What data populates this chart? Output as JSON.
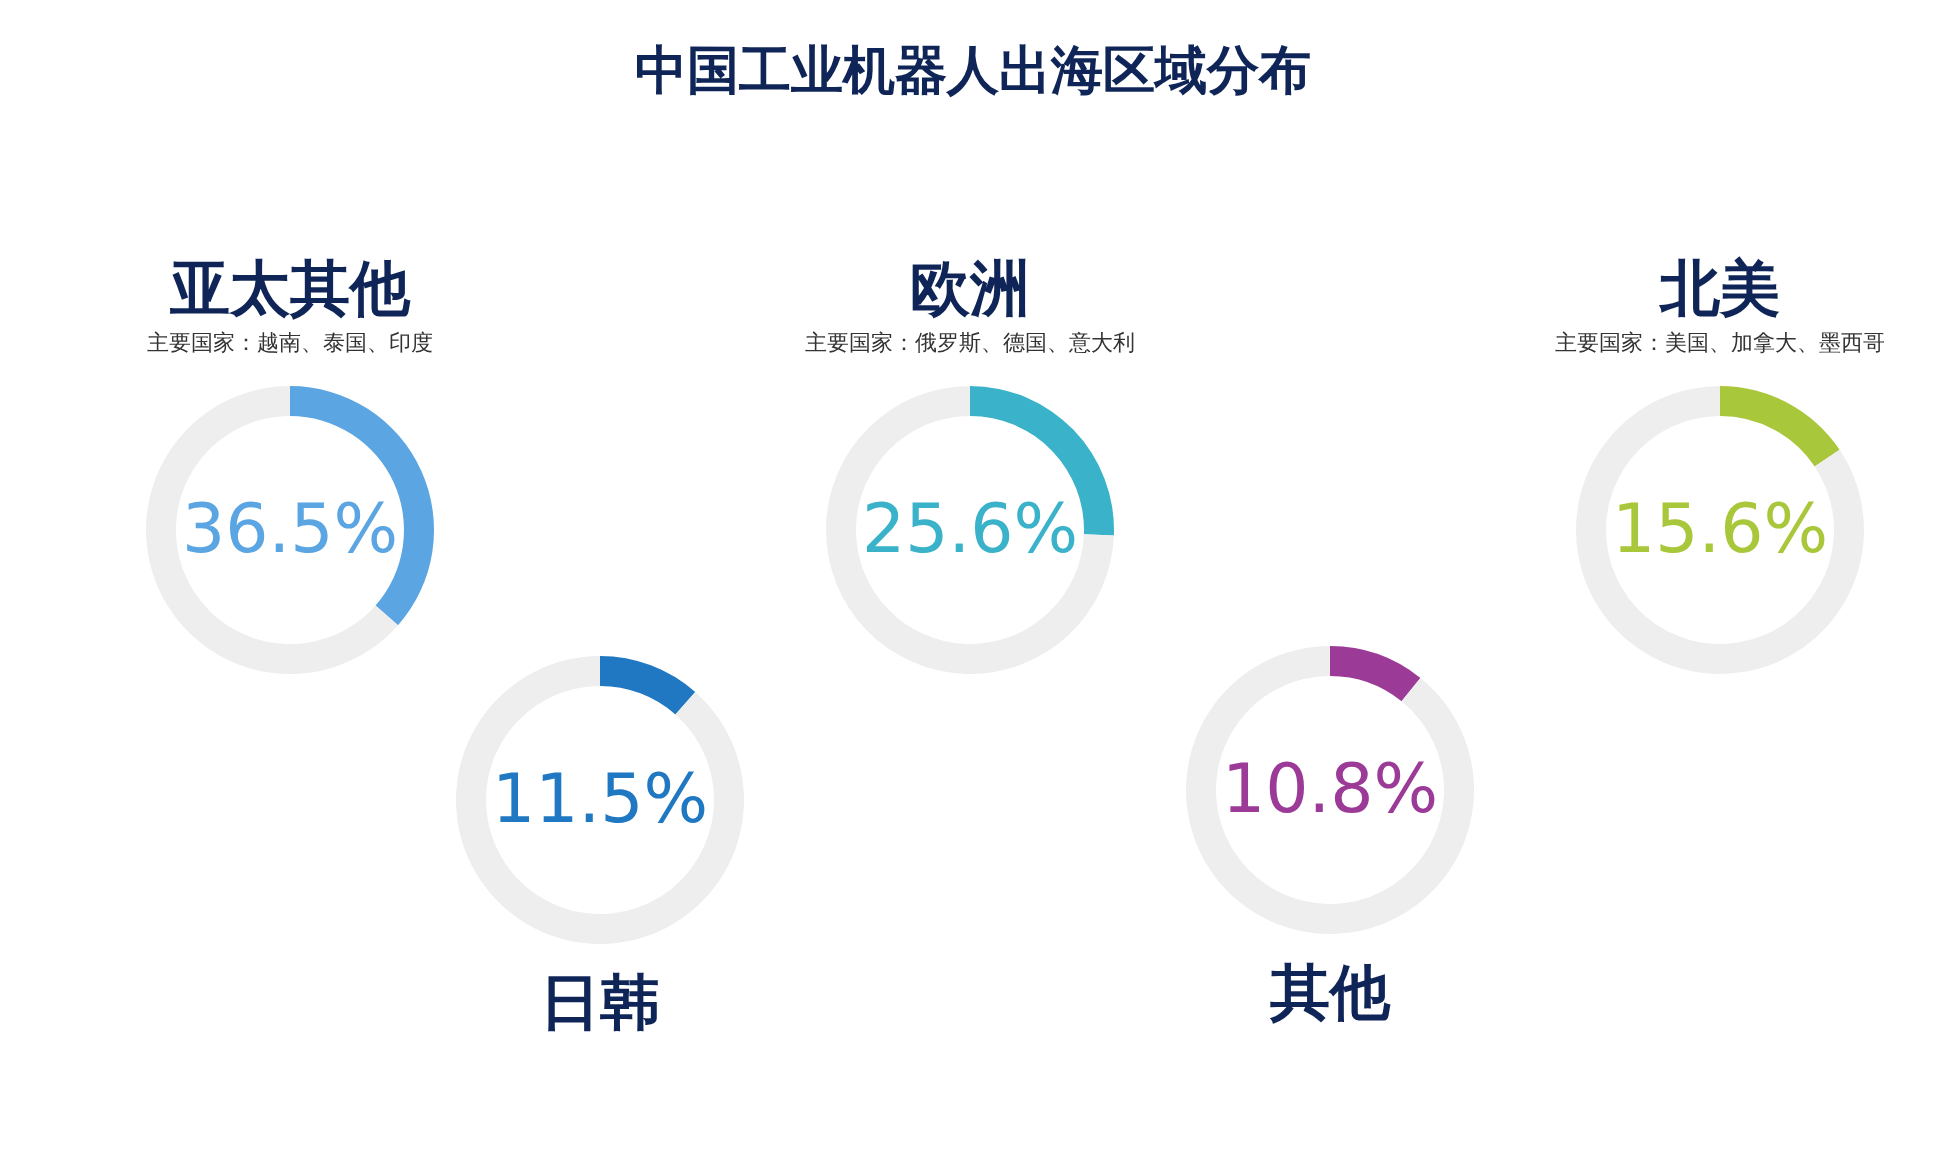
{
  "chart_data": [
    {
      "type": "other",
      "title": "中国工业机器人出海区域分布"
    },
    {
      "type": "donut",
      "title": "亚太其他",
      "subtitle": "主要国家：越南、泰国、印度",
      "categories": [
        null,
        null
      ],
      "values": [
        36.5,
        63.5
      ],
      "colors": [
        "#5aa5e2",
        "#eeeeee"
      ],
      "value_labels": [
        "36.5%",
        null
      ]
    },
    {
      "type": "donut",
      "title": "欧洲",
      "subtitle": "主要国家：俄罗斯、德国、意大利",
      "categories": [
        null,
        null
      ],
      "values": [
        25.6,
        74.4
      ],
      "colors": [
        "#3ab2c9",
        "#eeeeee"
      ],
      "value_labels": [
        "25.6%",
        null
      ]
    },
    {
      "type": "donut",
      "title": "北美",
      "subtitle": "主要国家：美国、加拿大、墨西哥",
      "categories": [
        null,
        null
      ],
      "values": [
        15.6,
        84.4
      ],
      "colors": [
        "#a9c73a",
        "#eeeeee"
      ],
      "value_labels": [
        "15.6%",
        null
      ]
    },
    {
      "type": "donut",
      "title": "日韩",
      "categories": [
        null,
        null
      ],
      "values": [
        11.5,
        88.5
      ],
      "colors": [
        "#1f78c1",
        "#eeeeee"
      ],
      "value_labels": [
        "11.5%",
        null
      ]
    },
    {
      "type": "donut",
      "title": "其他",
      "categories": [
        null,
        null
      ],
      "values": [
        10.8,
        89.2
      ],
      "colors": [
        "#9b3b97",
        "#eeeeee"
      ],
      "value_labels": [
        "10.8%",
        null
      ]
    }
  ]
}
